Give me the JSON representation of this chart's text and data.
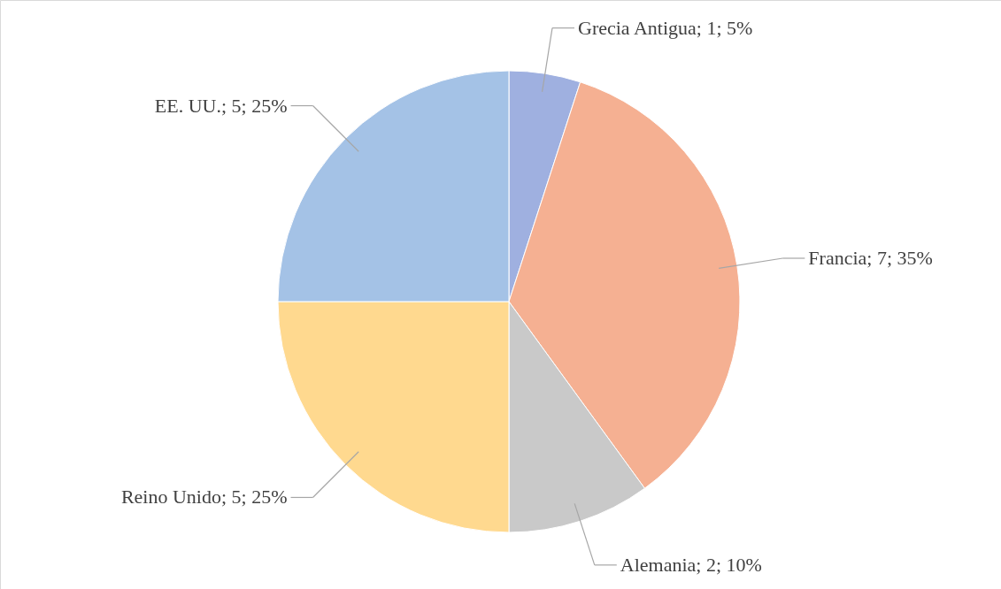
{
  "chart_data": {
    "type": "pie",
    "categories": [
      "Grecia Antigua",
      "Francia",
      "Alemania",
      "Reino Unido",
      "EE. UU."
    ],
    "values": [
      1,
      7,
      2,
      5,
      5
    ],
    "colors": [
      "#9fb0e0",
      "#f5b092",
      "#c9c9c9",
      "#ffd98f",
      "#a4c2e6"
    ],
    "value_labels": [
      "1; 5%",
      "7; 35%",
      "2; 10%",
      "5; 25%",
      "5; 25%"
    ]
  }
}
